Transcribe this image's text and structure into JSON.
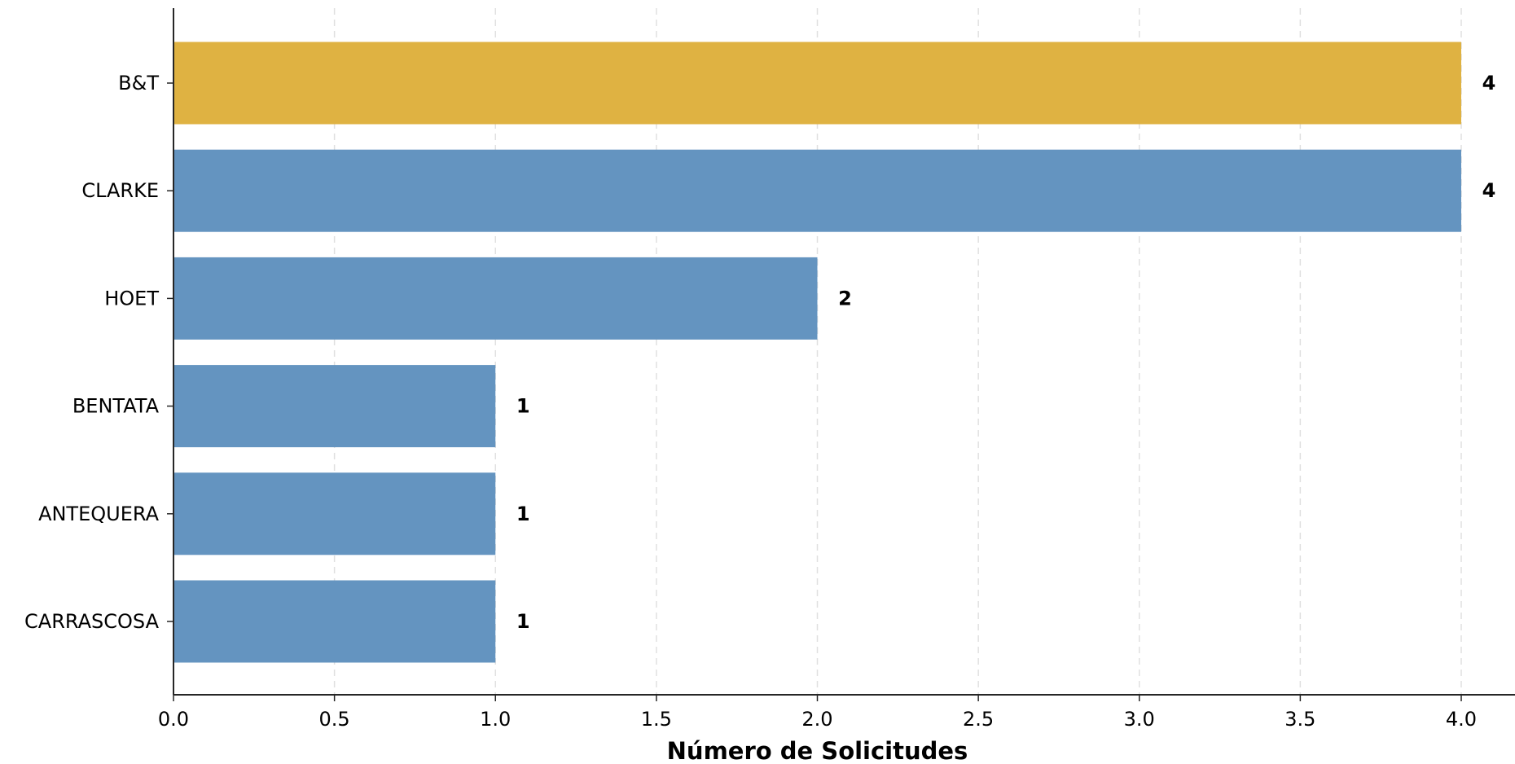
{
  "chart_data": {
    "type": "bar",
    "orientation": "horizontal",
    "categories": [
      "B&T",
      "CLARKE",
      "HOET",
      "BENTATA",
      "ANTEQUERA",
      "CARRASCOSA"
    ],
    "values": [
      4,
      4,
      2,
      1,
      1,
      1
    ],
    "value_labels": [
      "4",
      "4",
      "2",
      "1",
      "1",
      "1"
    ],
    "title": "",
    "xlabel": "Número de Solicitudes",
    "ylabel": "",
    "xlim": [
      0,
      4.1
    ],
    "xticks": [
      0.0,
      0.5,
      1.0,
      1.5,
      2.0,
      2.5,
      3.0,
      3.5,
      4.0
    ],
    "xtick_labels": [
      "0.0",
      "0.5",
      "1.0",
      "1.5",
      "2.0",
      "2.5",
      "3.0",
      "3.5",
      "4.0"
    ],
    "grid": {
      "x": true,
      "y": false,
      "style": "dashed"
    },
    "legend": "none",
    "colors": {
      "highlight": "#DFB242",
      "default": "#6494C0",
      "grid": "#E0E0E0",
      "axis": "#262626"
    },
    "bar_colors": [
      "#DFB242",
      "#6494C0",
      "#6494C0",
      "#6494C0",
      "#6494C0",
      "#6494C0"
    ]
  }
}
